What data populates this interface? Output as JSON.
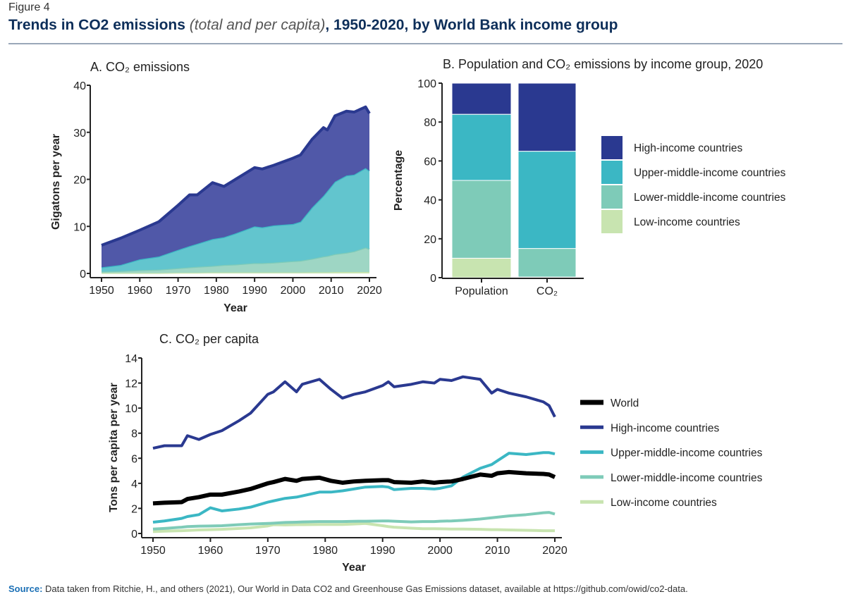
{
  "header": {
    "figure_label": "Figure 4",
    "title_bold_1": "Trends in CO2 emissions ",
    "title_italic": "(total and per capita)",
    "title_bold_2": ", 1950-2020, by World Bank income group"
  },
  "footer": {
    "source_label": "Source:",
    "source_text": " Data taken from Ritchie, H., and others (2021), Our World in Data CO2 and Greenhouse Gas Emissions dataset, available at https://github.com/owid/co2-data."
  },
  "colors": {
    "high": "#2a3990",
    "high_fill": "#5058a8",
    "upper_middle": "#3bb7c4",
    "upper_middle_fill": "#62c5ce",
    "lower_middle": "#7ecbb8",
    "lower_middle_fill": "#9ed6c4",
    "low": "#c8e4b0",
    "world": "#000000"
  },
  "chart_data": [
    {
      "type": "area",
      "stacked": true,
      "title": "A. CO₂ emissions",
      "xlabel": "Year",
      "ylabel": "Gigatons per year",
      "xlim": [
        1950,
        2020
      ],
      "ylim": [
        0,
        40
      ],
      "xticks": [
        "1950",
        "1960",
        "1970",
        "1980",
        "1990",
        "2000",
        "2010",
        "2020"
      ],
      "yticks": [
        "0",
        "10",
        "20",
        "30",
        "40"
      ],
      "x": [
        1950,
        1955,
        1960,
        1965,
        1970,
        1973,
        1975,
        1979,
        1982,
        1985,
        1990,
        1992,
        1995,
        2000,
        2002,
        2005,
        2008,
        2009,
        2011,
        2014,
        2016,
        2019,
        2020
      ],
      "series": [
        {
          "key": "low",
          "values": [
            0.1,
            0.1,
            0.1,
            0.1,
            0.15,
            0.15,
            0.15,
            0.2,
            0.2,
            0.2,
            0.2,
            0.2,
            0.2,
            0.2,
            0.2,
            0.25,
            0.25,
            0.25,
            0.3,
            0.3,
            0.3,
            0.3,
            0.3
          ]
        },
        {
          "key": "lower_middle",
          "values": [
            0.3,
            0.4,
            0.6,
            0.7,
            0.95,
            1.15,
            1.25,
            1.4,
            1.6,
            1.7,
            2.0,
            2.0,
            2.1,
            2.4,
            2.5,
            2.85,
            3.35,
            3.45,
            3.8,
            4.1,
            4.4,
            5.2,
            4.9
          ]
        },
        {
          "key": "upper_middle",
          "values": [
            0.9,
            1.3,
            2.3,
            2.8,
            3.9,
            4.5,
            4.9,
            5.7,
            5.9,
            6.6,
            7.8,
            7.6,
            7.9,
            7.9,
            8.3,
            10.9,
            12.9,
            13.8,
            15.4,
            16.4,
            16.3,
            16.9,
            16.6
          ]
        },
        {
          "key": "high",
          "values": [
            4.7,
            5.7,
            6.2,
            7.4,
            9.5,
            10.9,
            10.4,
            12.0,
            10.8,
            11.5,
            12.5,
            12.4,
            12.8,
            14.0,
            14.2,
            14.5,
            14.5,
            13.0,
            14.0,
            13.7,
            13.3,
            13.0,
            12.2
          ]
        }
      ]
    },
    {
      "type": "bar",
      "stacked": true,
      "title": "B. Population and CO₂ emissions by income group, 2020",
      "ylabel": "Percentage",
      "ylim": [
        0,
        100
      ],
      "yticks": [
        "0",
        "20",
        "40",
        "60",
        "80",
        "100"
      ],
      "categories": [
        "Population",
        "CO₂"
      ],
      "legend_position": "right",
      "series": [
        {
          "key": "low",
          "name": "Low-income countries",
          "values": [
            10,
            0.3
          ]
        },
        {
          "key": "lower_middle",
          "name": "Lower-middle-income countries",
          "values": [
            40,
            14.7
          ]
        },
        {
          "key": "upper_middle",
          "name": "Upper-middle-income countries",
          "values": [
            34,
            50
          ]
        },
        {
          "key": "high",
          "name": "High-income countries",
          "values": [
            16,
            35
          ]
        }
      ]
    },
    {
      "type": "line",
      "title": "C. CO₂ per capita",
      "xlabel": "Year",
      "ylabel": "Tons per capita per year",
      "xlim": [
        1950,
        2020
      ],
      "ylim": [
        0,
        14
      ],
      "xticks": [
        "1950",
        "1960",
        "1970",
        "1980",
        "1990",
        "2000",
        "2010",
        "2020"
      ],
      "yticks": [
        "0",
        "2",
        "4",
        "6",
        "8",
        "10",
        "12",
        "14"
      ],
      "legend_position": "right",
      "x": [
        1950,
        1952,
        1955,
        1956,
        1958,
        1960,
        1962,
        1965,
        1967,
        1970,
        1971,
        1973,
        1975,
        1976,
        1979,
        1981,
        1983,
        1985,
        1987,
        1990,
        1991,
        1992,
        1995,
        1997,
        1999,
        2000,
        2002,
        2004,
        2007,
        2009,
        2010,
        2012,
        2015,
        2018,
        2019,
        2020
      ],
      "series": [
        {
          "key": "low",
          "name": "Low-income countries",
          "values": [
            0.15,
            0.18,
            0.22,
            0.24,
            0.28,
            0.3,
            0.33,
            0.4,
            0.45,
            0.6,
            0.7,
            0.68,
            0.7,
            0.7,
            0.72,
            0.72,
            0.72,
            0.75,
            0.8,
            0.62,
            0.55,
            0.5,
            0.42,
            0.38,
            0.38,
            0.37,
            0.35,
            0.35,
            0.33,
            0.3,
            0.3,
            0.28,
            0.25,
            0.22,
            0.22,
            0.22
          ]
        },
        {
          "key": "lower_middle",
          "name": "Lower-middle-income countries",
          "values": [
            0.35,
            0.4,
            0.5,
            0.55,
            0.58,
            0.6,
            0.62,
            0.7,
            0.75,
            0.8,
            0.82,
            0.88,
            0.9,
            0.92,
            0.95,
            0.95,
            0.95,
            0.97,
            0.98,
            1.0,
            1.0,
            0.98,
            0.92,
            0.95,
            0.95,
            0.98,
            1.0,
            1.05,
            1.15,
            1.25,
            1.3,
            1.4,
            1.5,
            1.65,
            1.68,
            1.55
          ]
        },
        {
          "key": "upper_middle",
          "name": "Upper-middle-income countries",
          "values": [
            0.9,
            1.0,
            1.2,
            1.35,
            1.5,
            2.05,
            1.8,
            1.95,
            2.1,
            2.5,
            2.6,
            2.8,
            2.9,
            3.0,
            3.3,
            3.3,
            3.4,
            3.55,
            3.7,
            3.75,
            3.7,
            3.5,
            3.6,
            3.6,
            3.55,
            3.6,
            3.8,
            4.5,
            5.2,
            5.5,
            5.8,
            6.4,
            6.3,
            6.45,
            6.45,
            6.35
          ]
        },
        {
          "key": "high",
          "name": "High-income countries",
          "values": [
            6.8,
            7.0,
            7.0,
            7.8,
            7.5,
            7.9,
            8.2,
            9.0,
            9.6,
            11.1,
            11.3,
            12.1,
            11.3,
            11.9,
            12.3,
            11.5,
            10.8,
            11.1,
            11.3,
            11.8,
            12.1,
            11.7,
            11.9,
            12.1,
            12.0,
            12.3,
            12.2,
            12.5,
            12.3,
            11.2,
            11.5,
            11.2,
            10.9,
            10.5,
            10.2,
            9.3
          ]
        },
        {
          "key": "world",
          "name": "World",
          "values": [
            2.4,
            2.45,
            2.5,
            2.75,
            2.9,
            3.1,
            3.1,
            3.35,
            3.55,
            4.0,
            4.1,
            4.35,
            4.2,
            4.35,
            4.45,
            4.2,
            4.05,
            4.15,
            4.2,
            4.25,
            4.25,
            4.1,
            4.05,
            4.15,
            4.05,
            4.1,
            4.15,
            4.35,
            4.7,
            4.6,
            4.8,
            4.9,
            4.8,
            4.75,
            4.7,
            4.5
          ]
        }
      ]
    }
  ]
}
